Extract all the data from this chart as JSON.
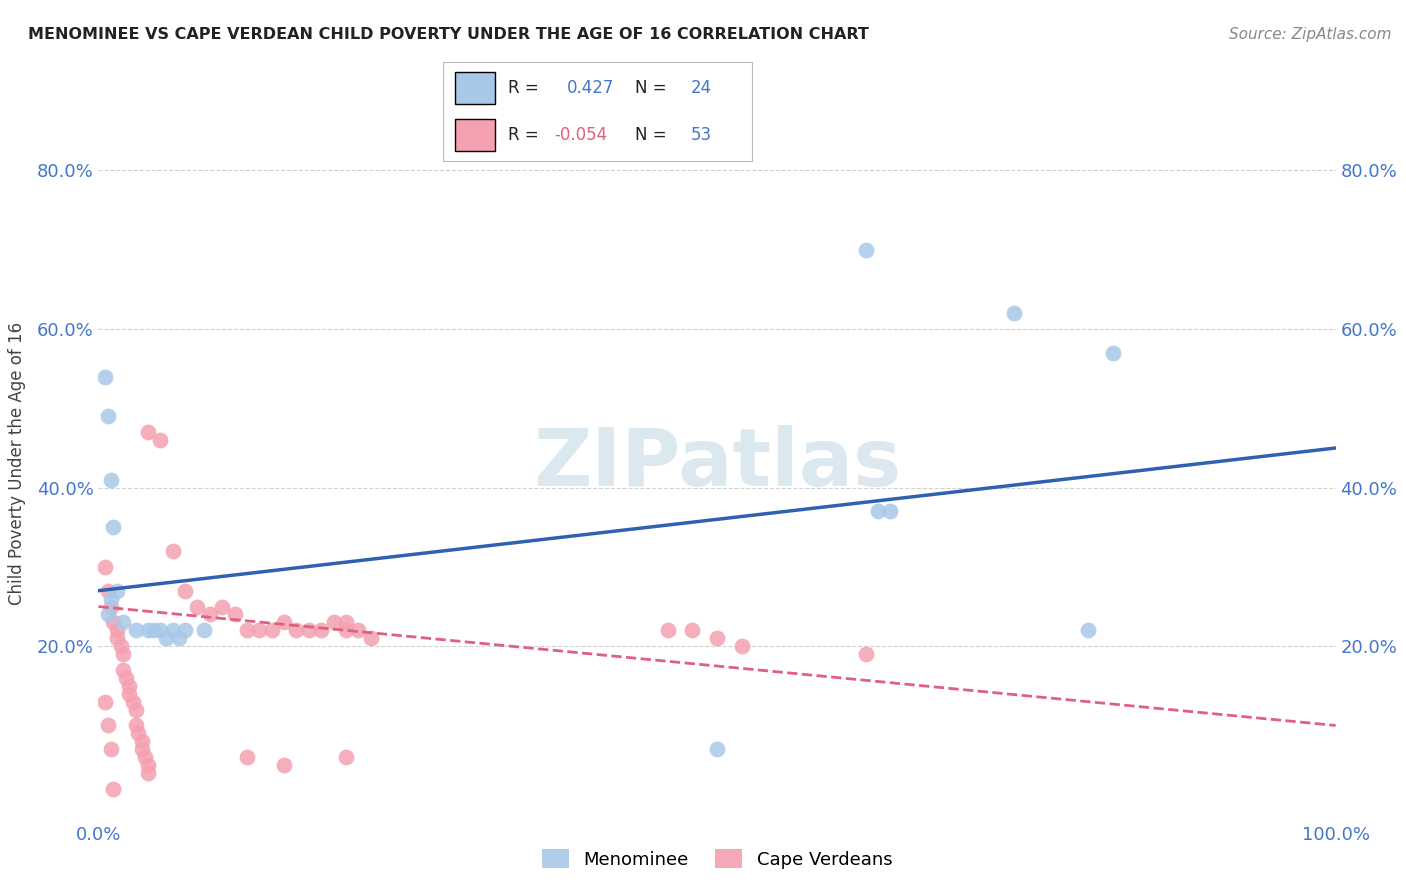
{
  "title": "MENOMINEE VS CAPE VERDEAN CHILD POVERTY UNDER THE AGE OF 16 CORRELATION CHART",
  "source": "Source: ZipAtlas.com",
  "ylabel": "Child Poverty Under the Age of 16",
  "xlim": [
    0.0,
    1.0
  ],
  "ylim": [
    -0.02,
    0.88
  ],
  "xticks": [
    0.0,
    0.25,
    0.5,
    0.75,
    1.0
  ],
  "xticklabels": [
    "0.0%",
    "",
    "",
    "",
    "100.0%"
  ],
  "yticks": [
    0.2,
    0.4,
    0.6,
    0.8
  ],
  "yticklabels": [
    "20.0%",
    "40.0%",
    "60.0%",
    "80.0%"
  ],
  "menominee_color": "#a8c8e8",
  "cape_verdean_color": "#f4a0b0",
  "menominee_line_color": "#3060b0",
  "cape_verdean_line_color": "#e06080",
  "menominee_x": [
    0.005,
    0.008,
    0.01,
    0.012,
    0.015,
    0.01,
    0.008,
    0.02,
    0.03,
    0.04,
    0.05,
    0.06,
    0.07,
    0.055,
    0.065,
    0.62,
    0.74,
    0.82,
    0.63,
    0.64,
    0.8,
    0.5,
    0.085,
    0.045
  ],
  "menominee_y": [
    0.54,
    0.49,
    0.41,
    0.35,
    0.27,
    0.26,
    0.24,
    0.23,
    0.22,
    0.22,
    0.22,
    0.22,
    0.22,
    0.21,
    0.21,
    0.7,
    0.62,
    0.57,
    0.37,
    0.37,
    0.22,
    0.07,
    0.22,
    0.22
  ],
  "cape_verdean_x": [
    0.005,
    0.008,
    0.01,
    0.012,
    0.015,
    0.015,
    0.018,
    0.02,
    0.02,
    0.022,
    0.025,
    0.025,
    0.028,
    0.03,
    0.03,
    0.032,
    0.035,
    0.035,
    0.038,
    0.04,
    0.04,
    0.005,
    0.008,
    0.01,
    0.012,
    0.04,
    0.05,
    0.06,
    0.07,
    0.08,
    0.09,
    0.1,
    0.11,
    0.12,
    0.13,
    0.14,
    0.15,
    0.16,
    0.17,
    0.18,
    0.19,
    0.2,
    0.2,
    0.21,
    0.22,
    0.12,
    0.15,
    0.2,
    0.46,
    0.48,
    0.5,
    0.52,
    0.62
  ],
  "cape_verdean_y": [
    0.3,
    0.27,
    0.25,
    0.23,
    0.22,
    0.21,
    0.2,
    0.19,
    0.17,
    0.16,
    0.15,
    0.14,
    0.13,
    0.12,
    0.1,
    0.09,
    0.08,
    0.07,
    0.06,
    0.05,
    0.04,
    0.13,
    0.1,
    0.07,
    0.02,
    0.47,
    0.46,
    0.32,
    0.27,
    0.25,
    0.24,
    0.25,
    0.24,
    0.22,
    0.22,
    0.22,
    0.23,
    0.22,
    0.22,
    0.22,
    0.23,
    0.22,
    0.23,
    0.22,
    0.21,
    0.06,
    0.05,
    0.06,
    0.22,
    0.22,
    0.21,
    0.2,
    0.19
  ],
  "background_color": "#ffffff",
  "grid_color": "#cccccc",
  "tick_color": "#4477cc",
  "watermark_color": "#dce8f0",
  "menominee_line_x0": 0.0,
  "menominee_line_y0": 0.27,
  "menominee_line_x1": 1.0,
  "menominee_line_y1": 0.45,
  "cape_line_x0": 0.0,
  "cape_line_y0": 0.25,
  "cape_line_x1": 1.0,
  "cape_line_y1": 0.1
}
